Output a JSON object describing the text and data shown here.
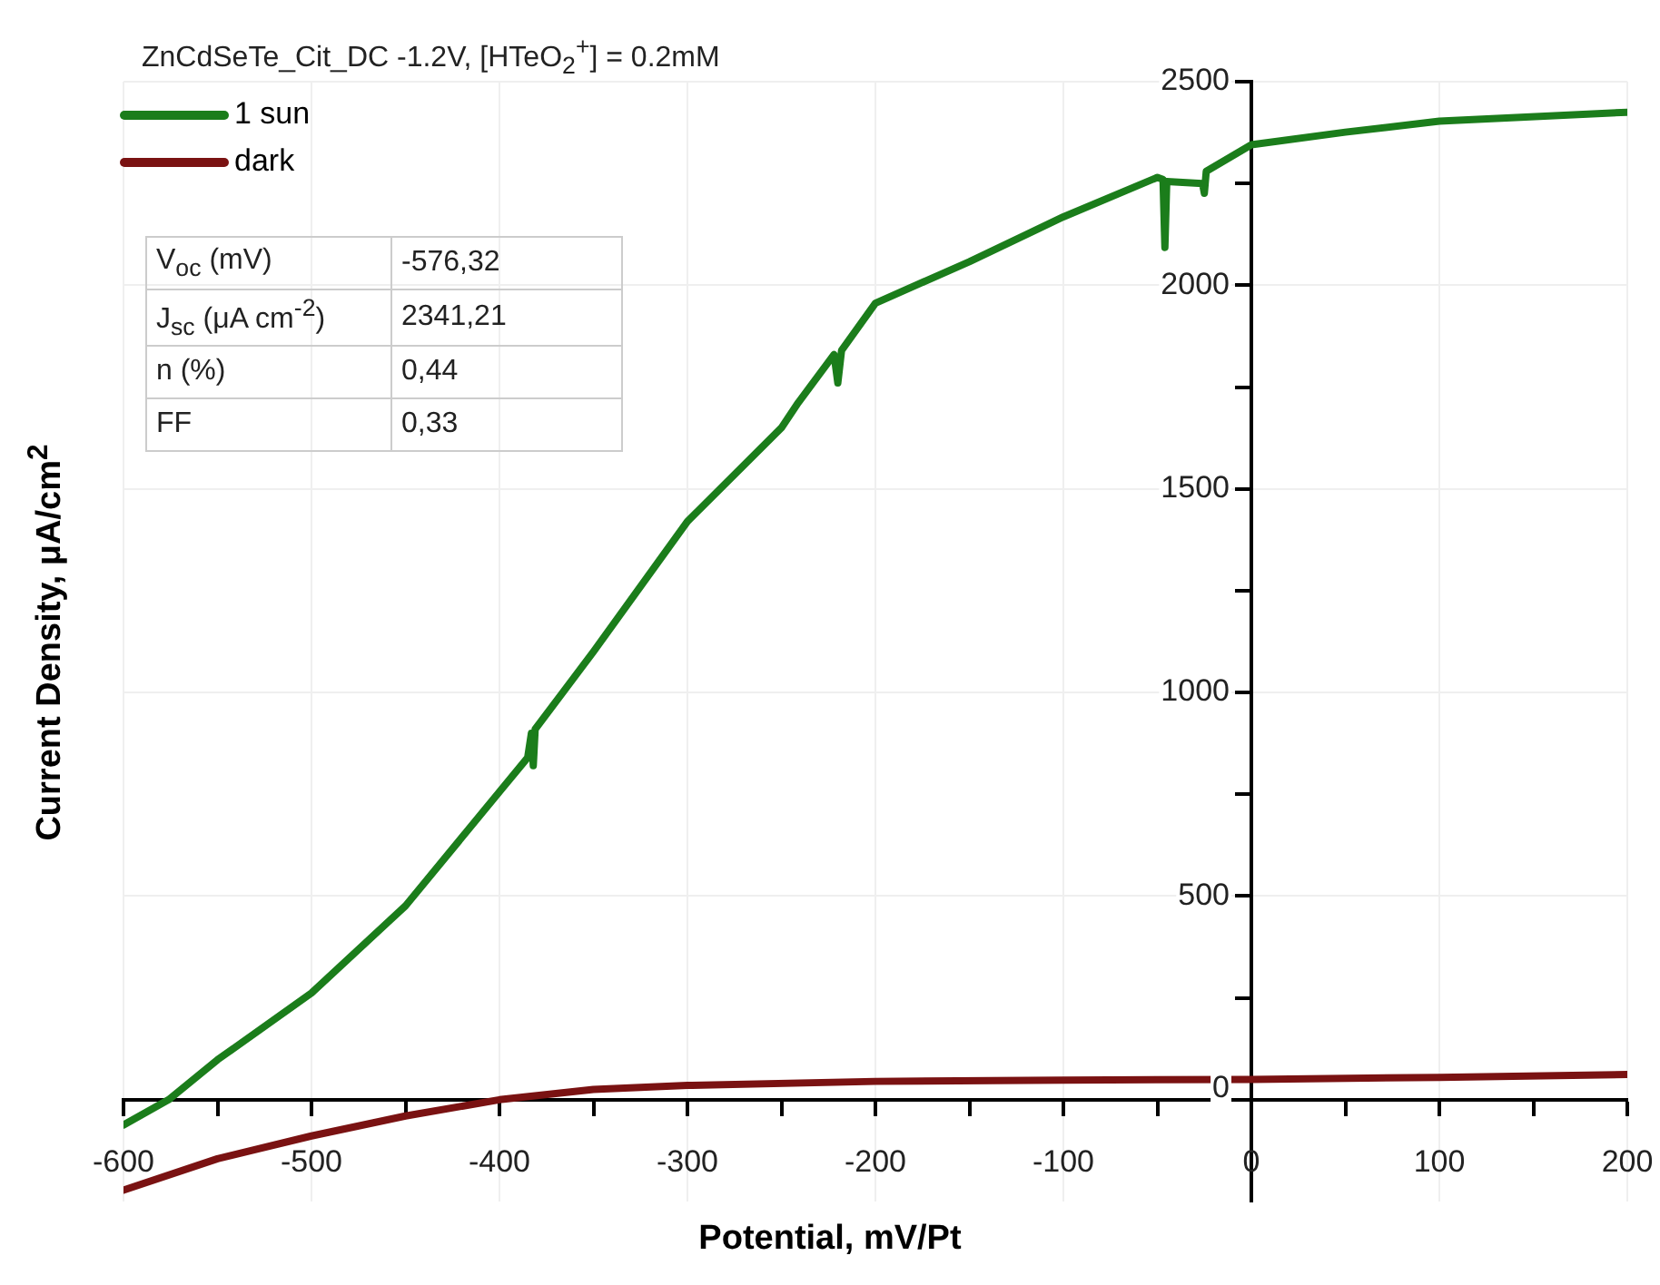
{
  "chart_data": {
    "type": "line",
    "title": "ZnCdSeTe_Cit_DC -1.2V, [HTeO$_{2}$$^{+}$] = 0.2mM",
    "xlabel": "Potential, mV/Pt",
    "ylabel": "Current Density, μA/cm$^{2}$",
    "xlim": [
      -600,
      200
    ],
    "ylim": [
      -250,
      2500
    ],
    "xticks": [
      -600,
      {
        "value": -550,
        "label": null
      },
      -500,
      {
        "value": -450,
        "label": null
      },
      -400,
      {
        "value": -350,
        "label": null
      },
      -300,
      {
        "value": -250,
        "label": null
      },
      -200,
      {
        "value": -150,
        "label": null
      },
      -100,
      {
        "value": -50,
        "label": null
      },
      0,
      {
        "value": 50,
        "label": null
      },
      100,
      {
        "value": 150,
        "label": null
      },
      200
    ],
    "yticks": [
      0,
      {
        "value": 250,
        "label": null
      },
      500,
      {
        "value": 750,
        "label": null
      },
      1000,
      {
        "value": 1250,
        "label": null
      },
      1500,
      {
        "value": 1750,
        "label": null
      },
      2000,
      {
        "value": 2250,
        "label": null
      },
      2500
    ],
    "grid": true,
    "legend": "top left",
    "marker": "none",
    "line_style": "solid",
    "series": [
      {
        "name": "1 sun",
        "color": "#1b7d1b",
        "x": [
          -600,
          -576,
          -550,
          -500,
          -450,
          -400,
          -385,
          -383,
          -382,
          -381,
          -350,
          -300,
          -250,
          -241,
          -222,
          -220,
          -218,
          -200,
          -150,
          -100,
          -50,
          -47,
          -46,
          -45,
          -26,
          -25,
          -24,
          0,
          50,
          100,
          200
        ],
        "values": [
          -62,
          0,
          98,
          262,
          476,
          756,
          840,
          900,
          820,
          910,
          1100,
          1420,
          1650,
          1712,
          1830,
          1760,
          1840,
          1956,
          2058,
          2168,
          2265,
          2260,
          2093,
          2255,
          2250,
          2226,
          2280,
          2345,
          2376,
          2403,
          2425
        ]
      },
      {
        "name": "dark",
        "color": "#7a1212",
        "x": [
          -600,
          -550,
          -500,
          -450,
          -400,
          -350,
          -300,
          -200,
          -100,
          0,
          100,
          200
        ],
        "values": [
          -222,
          -145,
          -89,
          -40,
          0,
          25,
          35,
          45,
          48,
          50,
          55,
          62
        ]
      }
    ],
    "annotations": [
      "V$_{oc}$ (mV)",
      "-576,32",
      "J$_{sc}$ (μA cm$^{-2}$)",
      "2341,21",
      "n (%)",
      "0,44",
      "FF",
      "0,33"
    ]
  }
}
